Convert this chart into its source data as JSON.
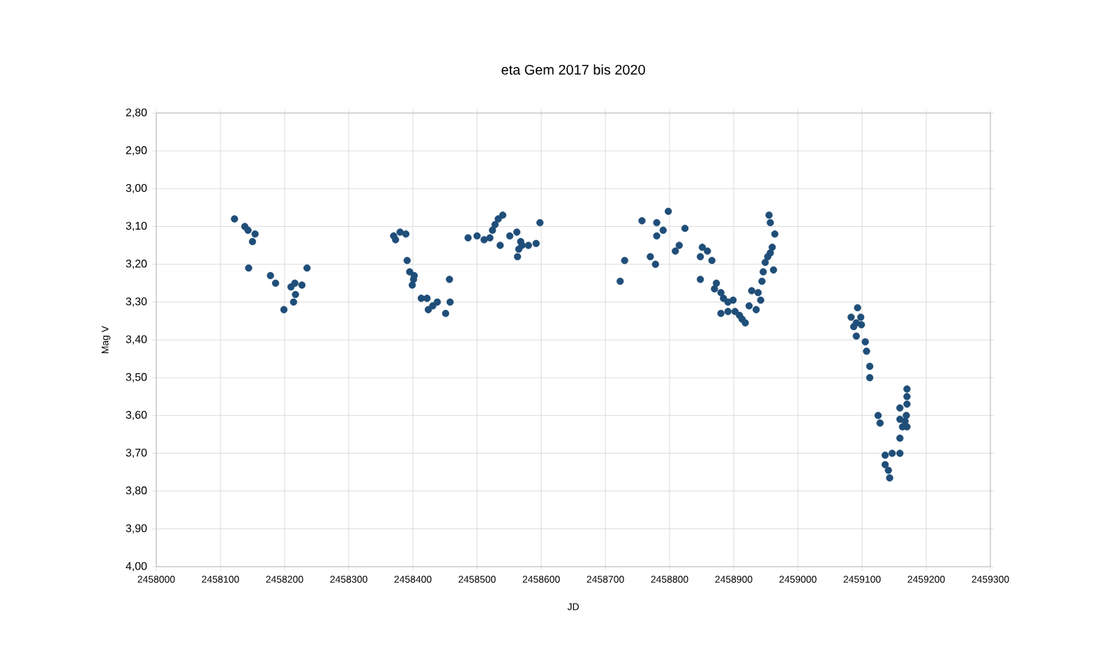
{
  "chart_data": {
    "type": "scatter",
    "title": "eta Gem 2017 bis 2020",
    "xlabel": "JD",
    "ylabel": "Mag V",
    "x": [
      2458122,
      2458138,
      2458143,
      2458154,
      2458150,
      2458144,
      2458178,
      2458186,
      2458199,
      2458210,
      2458216,
      2458217,
      2458214,
      2458227,
      2458235,
      2458370,
      2458373,
      2458380,
      2458389,
      2458391,
      2458395,
      2458402,
      2458401,
      2458399,
      2458413,
      2458422,
      2458424,
      2458431,
      2458438,
      2458451,
      2458457,
      2458458,
      2458486,
      2458500,
      2458511,
      2458520,
      2458524,
      2458528,
      2458533,
      2458540,
      2458536,
      2458551,
      2458562,
      2458568,
      2458565,
      2458563,
      2458570,
      2458580,
      2458592,
      2458598,
      2458723,
      2458730,
      2458757,
      2458770,
      2458778,
      2458780,
      2458790,
      2458780,
      2458798,
      2458824,
      2458809,
      2458815,
      2458848,
      2458851,
      2458859,
      2458866,
      2458848,
      2458870,
      2458873,
      2458880,
      2458884,
      2458891,
      2458899,
      2458880,
      2458891,
      2458902,
      2458909,
      2458918,
      2458913,
      2458924,
      2458928,
      2458935,
      2458938,
      2458942,
      2458944,
      2458946,
      2458949,
      2458953,
      2458957,
      2458960,
      2458962,
      2458964,
      2458957,
      2458955,
      2459093,
      2459083,
      2459098,
      2459091,
      2459099,
      2459087,
      2459091,
      2459105,
      2459107,
      2459112,
      2459112,
      2459125,
      2459128,
      2459136,
      2459147,
      2459136,
      2459141,
      2459143,
      2459159,
      2459170,
      2459170,
      2459170,
      2459159,
      2459167,
      2459170,
      2459163,
      2459159,
      2459159,
      2459169
    ],
    "values": [
      3.08,
      3.1,
      3.11,
      3.12,
      3.14,
      3.21,
      3.23,
      3.25,
      3.32,
      3.26,
      3.25,
      3.28,
      3.3,
      3.255,
      3.21,
      3.125,
      3.135,
      3.115,
      3.12,
      3.19,
      3.22,
      3.23,
      3.24,
      3.255,
      3.29,
      3.29,
      3.32,
      3.31,
      3.3,
      3.33,
      3.24,
      3.3,
      3.13,
      3.125,
      3.135,
      3.13,
      3.11,
      3.095,
      3.08,
      3.07,
      3.15,
      3.125,
      3.115,
      3.14,
      3.16,
      3.18,
      3.15,
      3.15,
      3.145,
      3.09,
      3.245,
      3.19,
      3.085,
      3.18,
      3.2,
      3.09,
      3.11,
      3.125,
      3.06,
      3.105,
      3.165,
      3.15,
      3.18,
      3.155,
      3.165,
      3.19,
      3.24,
      3.265,
      3.25,
      3.275,
      3.29,
      3.3,
      3.295,
      3.33,
      3.325,
      3.325,
      3.335,
      3.355,
      3.345,
      3.31,
      3.27,
      3.32,
      3.275,
      3.295,
      3.245,
      3.22,
      3.195,
      3.18,
      3.17,
      3.155,
      3.215,
      3.12,
      3.09,
      3.07,
      3.315,
      3.34,
      3.34,
      3.355,
      3.36,
      3.365,
      3.39,
      3.405,
      3.43,
      3.47,
      3.5,
      3.6,
      3.62,
      3.705,
      3.7,
      3.73,
      3.745,
      3.765,
      3.58,
      3.53,
      3.55,
      3.57,
      3.61,
      3.615,
      3.63,
      3.63,
      3.66,
      3.7,
      3.6
    ],
    "color": "#1f4e79",
    "marker": "circle",
    "grid": true,
    "xlim": [
      2458000,
      2459300
    ],
    "xticks": [
      2458000,
      2458100,
      2458200,
      2458300,
      2458400,
      2458500,
      2458600,
      2458700,
      2458800,
      2458900,
      2459000,
      2459100,
      2459200,
      2459300
    ],
    "ylim": [
      4.0,
      2.8
    ],
    "yticks": [
      {
        "value": 2.8,
        "label": "2,80"
      },
      {
        "value": 2.9,
        "label": "2,90"
      },
      {
        "value": 3.0,
        "label": "3,00"
      },
      {
        "value": 3.1,
        "label": "3,10"
      },
      {
        "value": 3.2,
        "label": "3,20"
      },
      {
        "value": 3.3,
        "label": "3,30"
      },
      {
        "value": 3.4,
        "label": "3,40"
      },
      {
        "value": 3.5,
        "label": "3,50"
      },
      {
        "value": 3.6,
        "label": "3,60"
      },
      {
        "value": 3.7,
        "label": "3,70"
      },
      {
        "value": 3.8,
        "label": "3,80"
      },
      {
        "value": 3.9,
        "label": "3,90"
      },
      {
        "value": 4.0,
        "label": "4,00"
      }
    ]
  }
}
